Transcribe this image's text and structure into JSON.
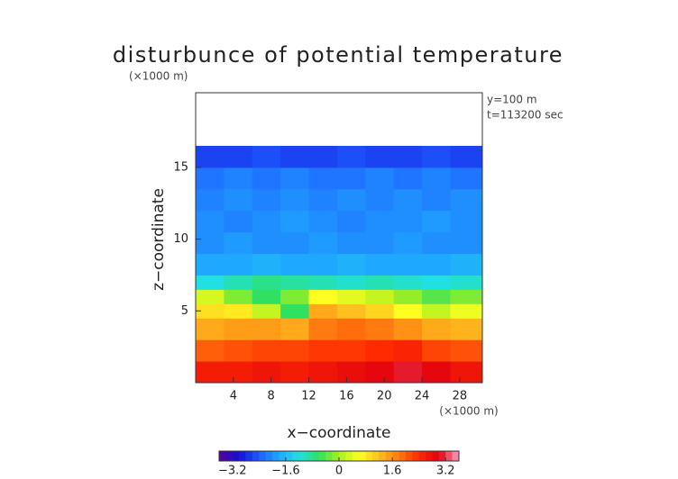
{
  "chart_data": {
    "type": "heatmap",
    "title": "disturbunce of potential temperature",
    "y_unit": "(×1000 m)",
    "x_unit": "(×1000 m)",
    "annotations": [
      "y=100 m",
      "t=113200 sec"
    ],
    "xlabel": "x−coordinate",
    "ylabel": "z−coordinate",
    "xlim": [
      0,
      30.4
    ],
    "ylim": [
      0,
      20.2
    ],
    "xticks": [
      4,
      8,
      12,
      16,
      20,
      24,
      28
    ],
    "yticks": [
      5,
      10,
      15
    ],
    "x": [
      0,
      3,
      6,
      9,
      12,
      15,
      18,
      21,
      24,
      27,
      30.4
    ],
    "y": [
      0,
      1.5,
      3,
      4.5,
      5.5,
      6.5,
      7.5,
      9,
      10.5,
      12,
      13.5,
      15,
      16.5
    ],
    "values": [
      [
        2.6,
        2.6,
        2.7,
        2.6,
        2.7,
        2.8,
        2.9,
        3.1,
        2.9,
        2.7
      ],
      [
        2.0,
        2.1,
        2.2,
        2.2,
        2.3,
        2.3,
        2.4,
        2.5,
        2.2,
        2.1
      ],
      [
        1.4,
        1.5,
        1.5,
        1.4,
        1.8,
        1.9,
        1.8,
        1.6,
        1.4,
        1.3
      ],
      [
        0.9,
        0.8,
        0.2,
        -0.6,
        1.4,
        1.2,
        1.0,
        0.6,
        0.2,
        0.5
      ],
      [
        0.3,
        -0.2,
        -0.6,
        -0.2,
        0.6,
        0.4,
        0.2,
        -0.1,
        -0.4,
        -0.2
      ],
      [
        -1.2,
        -1.0,
        -0.8,
        -0.9,
        -1.0,
        -1.1,
        -1.0,
        -1.1,
        -1.2,
        -1.1
      ],
      [
        -1.8,
        -1.8,
        -1.7,
        -1.8,
        -1.8,
        -1.7,
        -1.8,
        -1.8,
        -1.8,
        -1.7
      ],
      [
        -2.0,
        -1.9,
        -2.0,
        -2.0,
        -1.9,
        -2.0,
        -2.0,
        -1.9,
        -2.0,
        -2.0
      ],
      [
        -2.0,
        -2.1,
        -2.0,
        -1.9,
        -2.0,
        -2.1,
        -2.0,
        -2.0,
        -1.9,
        -2.0
      ],
      [
        -2.1,
        -2.0,
        -2.1,
        -2.0,
        -2.1,
        -2.0,
        -2.1,
        -2.0,
        -2.1,
        -2.0
      ],
      [
        -2.2,
        -2.1,
        -2.2,
        -2.1,
        -2.2,
        -2.2,
        -2.1,
        -2.2,
        -2.1,
        -2.2
      ],
      [
        -2.6,
        -2.6,
        -2.5,
        -2.6,
        -2.6,
        -2.5,
        -2.6,
        -2.6,
        -2.5,
        -2.6
      ]
    ],
    "clim": [
      -3.6,
      3.6
    ],
    "cticks": [
      {
        "value": -3.2,
        "label": "−3.2"
      },
      {
        "value": -1.6,
        "label": "−1.6"
      },
      0,
      1.6,
      3.2
    ],
    "colormap": [
      "#5a009a",
      "#1010d8",
      "#1f5cff",
      "#1fa8ff",
      "#20e0e0",
      "#30e060",
      "#a8f020",
      "#ffff20",
      "#ffc020",
      "#ff7a10",
      "#ff2a00",
      "#e00010",
      "#ff9fc0"
    ]
  }
}
